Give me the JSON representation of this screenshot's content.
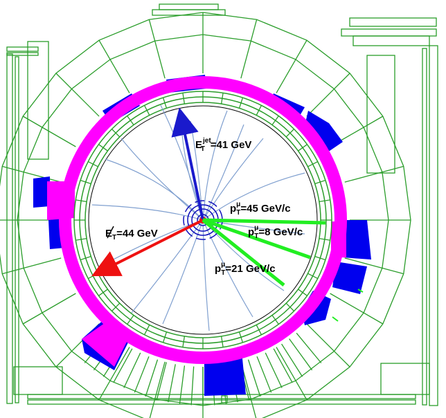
{
  "event": {
    "jet_label": {
      "symbol": "E",
      "sup": "jet",
      "sub": "T",
      "value": "=41 GeV"
    },
    "met_label": {
      "symbol": "E",
      "sub": "T",
      "value": "=44 GeV"
    },
    "muon1_label": {
      "symbol": "p",
      "sup": "μ",
      "sub": "T",
      "value": "=45 GeV/c"
    },
    "muon2_label": {
      "symbol": "p",
      "sup": "μ",
      "sub": "T",
      "value": "=8 GeV/c"
    },
    "muon3_label": {
      "symbol": "p",
      "sup": "μ",
      "sub": "T",
      "value": "=21 GeV/c"
    }
  },
  "colors": {
    "detector_outline": "#2a9d2a",
    "electromagnetic_calorimeter": "#ff00ff",
    "hadronic_calorimeter": "#0000ee",
    "jet_arrow": "#1a1acc",
    "met_arrow": "#ee1111",
    "muon_track": "#22ee22",
    "tracks": "#7f9fcf",
    "vertex_detector": "#1010bb"
  }
}
